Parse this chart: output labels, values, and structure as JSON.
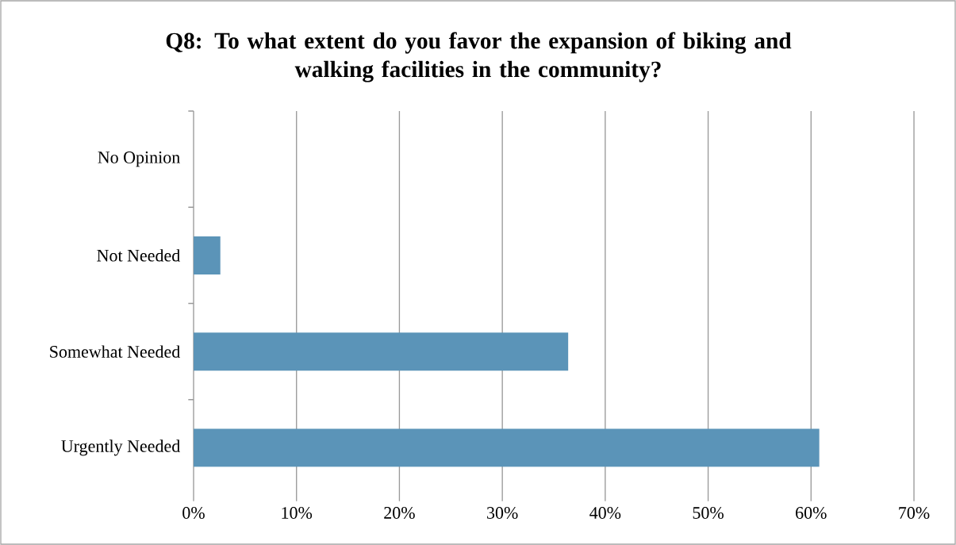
{
  "chart_data": {
    "type": "bar",
    "orientation": "horizontal",
    "title": "Q8: To what extent do you favor the expansion of biking and walking facilities in the community?",
    "categories": [
      "No Opinion",
      "Not Needed",
      "Somewhat Needed",
      "Urgently Needed"
    ],
    "values": [
      0,
      2.6,
      36.4,
      60.8
    ],
    "color": "#5b94b8",
    "xlim": [
      0,
      70
    ],
    "xticks": [
      {
        "value": 0,
        "label": "0%"
      },
      {
        "value": 10,
        "label": "10%"
      },
      {
        "value": 20,
        "label": "20%"
      },
      {
        "value": 30,
        "label": "30%"
      },
      {
        "value": 40,
        "label": "40%"
      },
      {
        "value": 50,
        "label": "50%"
      },
      {
        "value": 60,
        "label": "60%"
      },
      {
        "value": 70,
        "label": "70%"
      }
    ],
    "grid": "x"
  }
}
